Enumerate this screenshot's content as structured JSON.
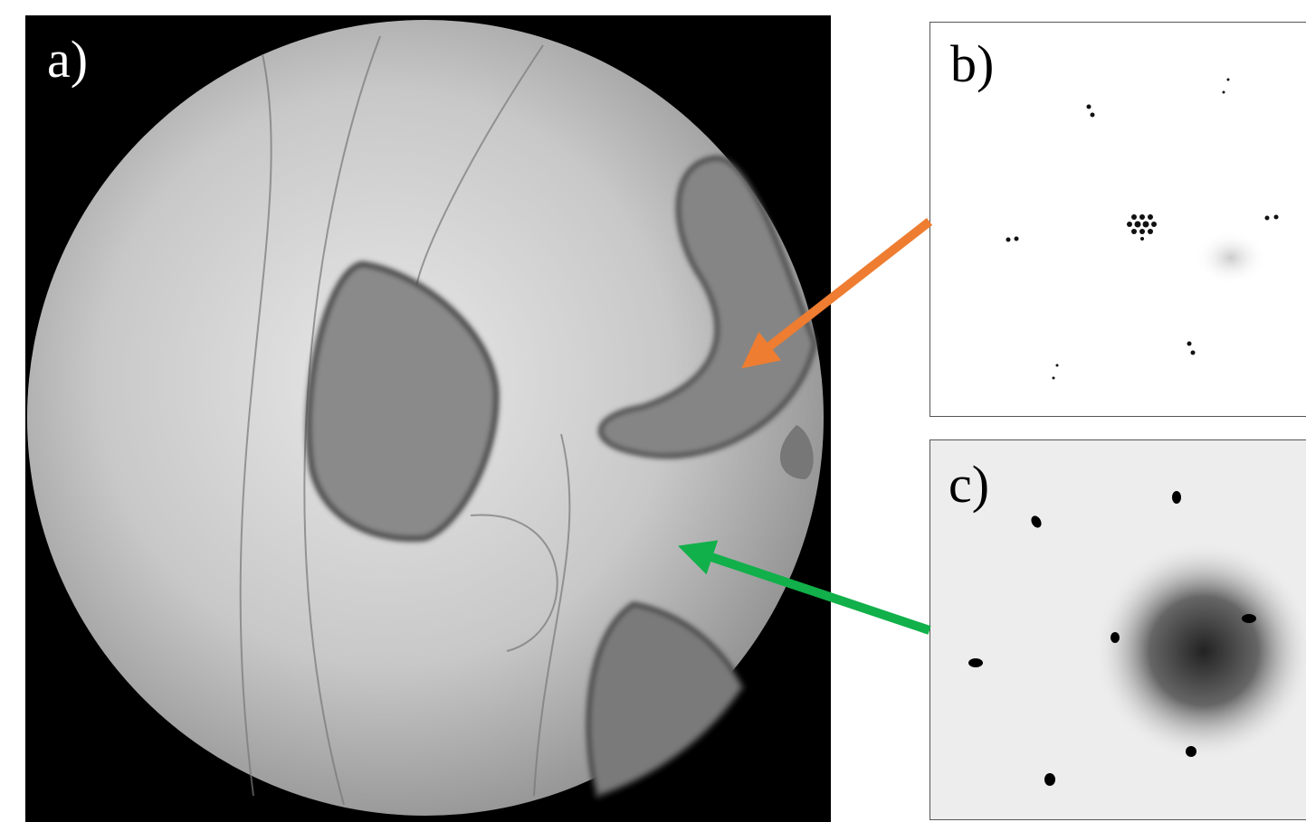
{
  "panels": [
    {
      "label": "a)"
    },
    {
      "label": "b)"
    },
    {
      "label": "c)"
    }
  ]
}
